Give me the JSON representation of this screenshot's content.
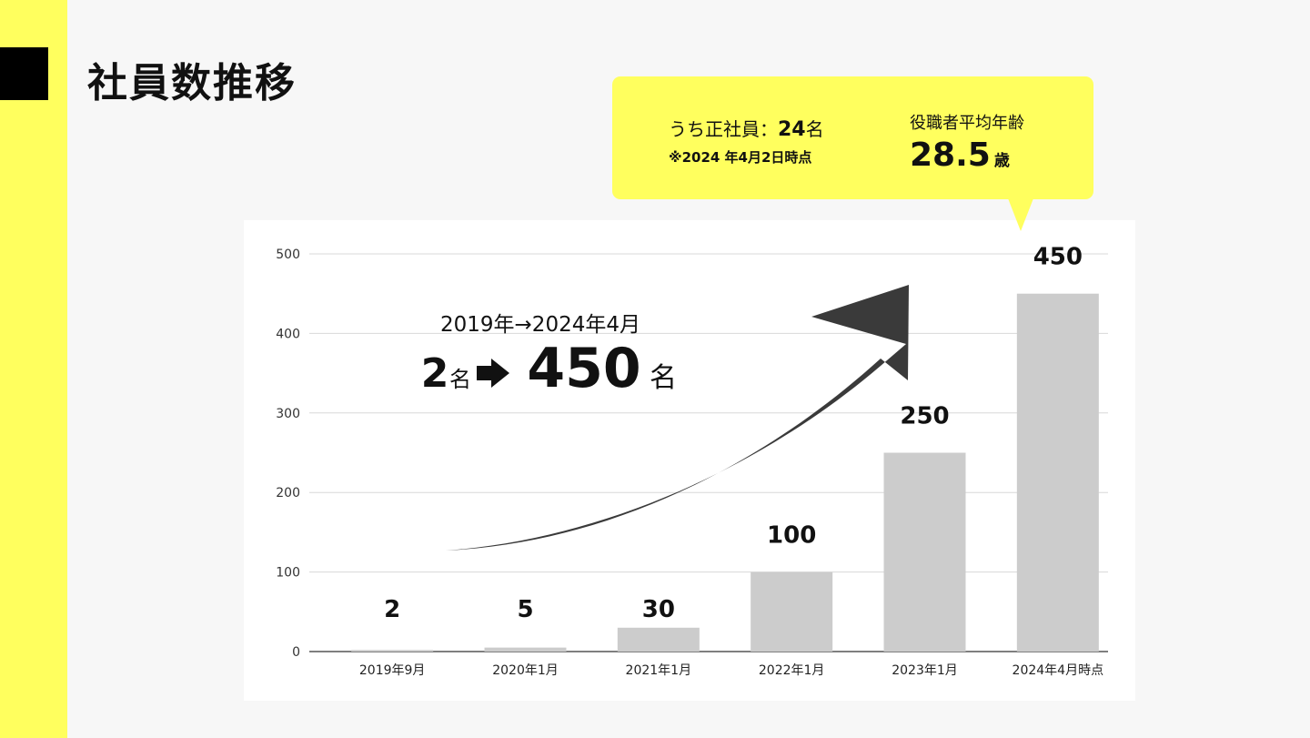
{
  "page": {
    "title": "社員数推移"
  },
  "callout": {
    "staff_prefix": "うち正社員：",
    "staff_count": "24",
    "staff_unit": "名",
    "note": "※2024 年4月2日時点",
    "age_label": "役職者平均年齢",
    "age_value": "28.5",
    "age_unit": "歳"
  },
  "headline": {
    "period": "2019年→2024年4月",
    "from_value": "2",
    "from_unit": "名",
    "to_value": "450",
    "to_unit": "名"
  },
  "chart_data": {
    "type": "bar",
    "categories": [
      "2019年9月",
      "2020年1月",
      "2021年1月",
      "2022年1月",
      "2023年1月",
      "2024年4月時点"
    ],
    "values": [
      2,
      5,
      30,
      100,
      250,
      450
    ],
    "data_labels": [
      "2",
      "5",
      "30",
      "100",
      "250",
      "450"
    ],
    "ylim": [
      0,
      500
    ],
    "yticks": [
      0,
      100,
      200,
      300,
      400,
      500
    ],
    "grid": true,
    "bar_color": "#cccccc",
    "arrow_color": "#3a3a3a"
  },
  "colors": {
    "accent": "#ffff5e",
    "text": "#111111"
  }
}
